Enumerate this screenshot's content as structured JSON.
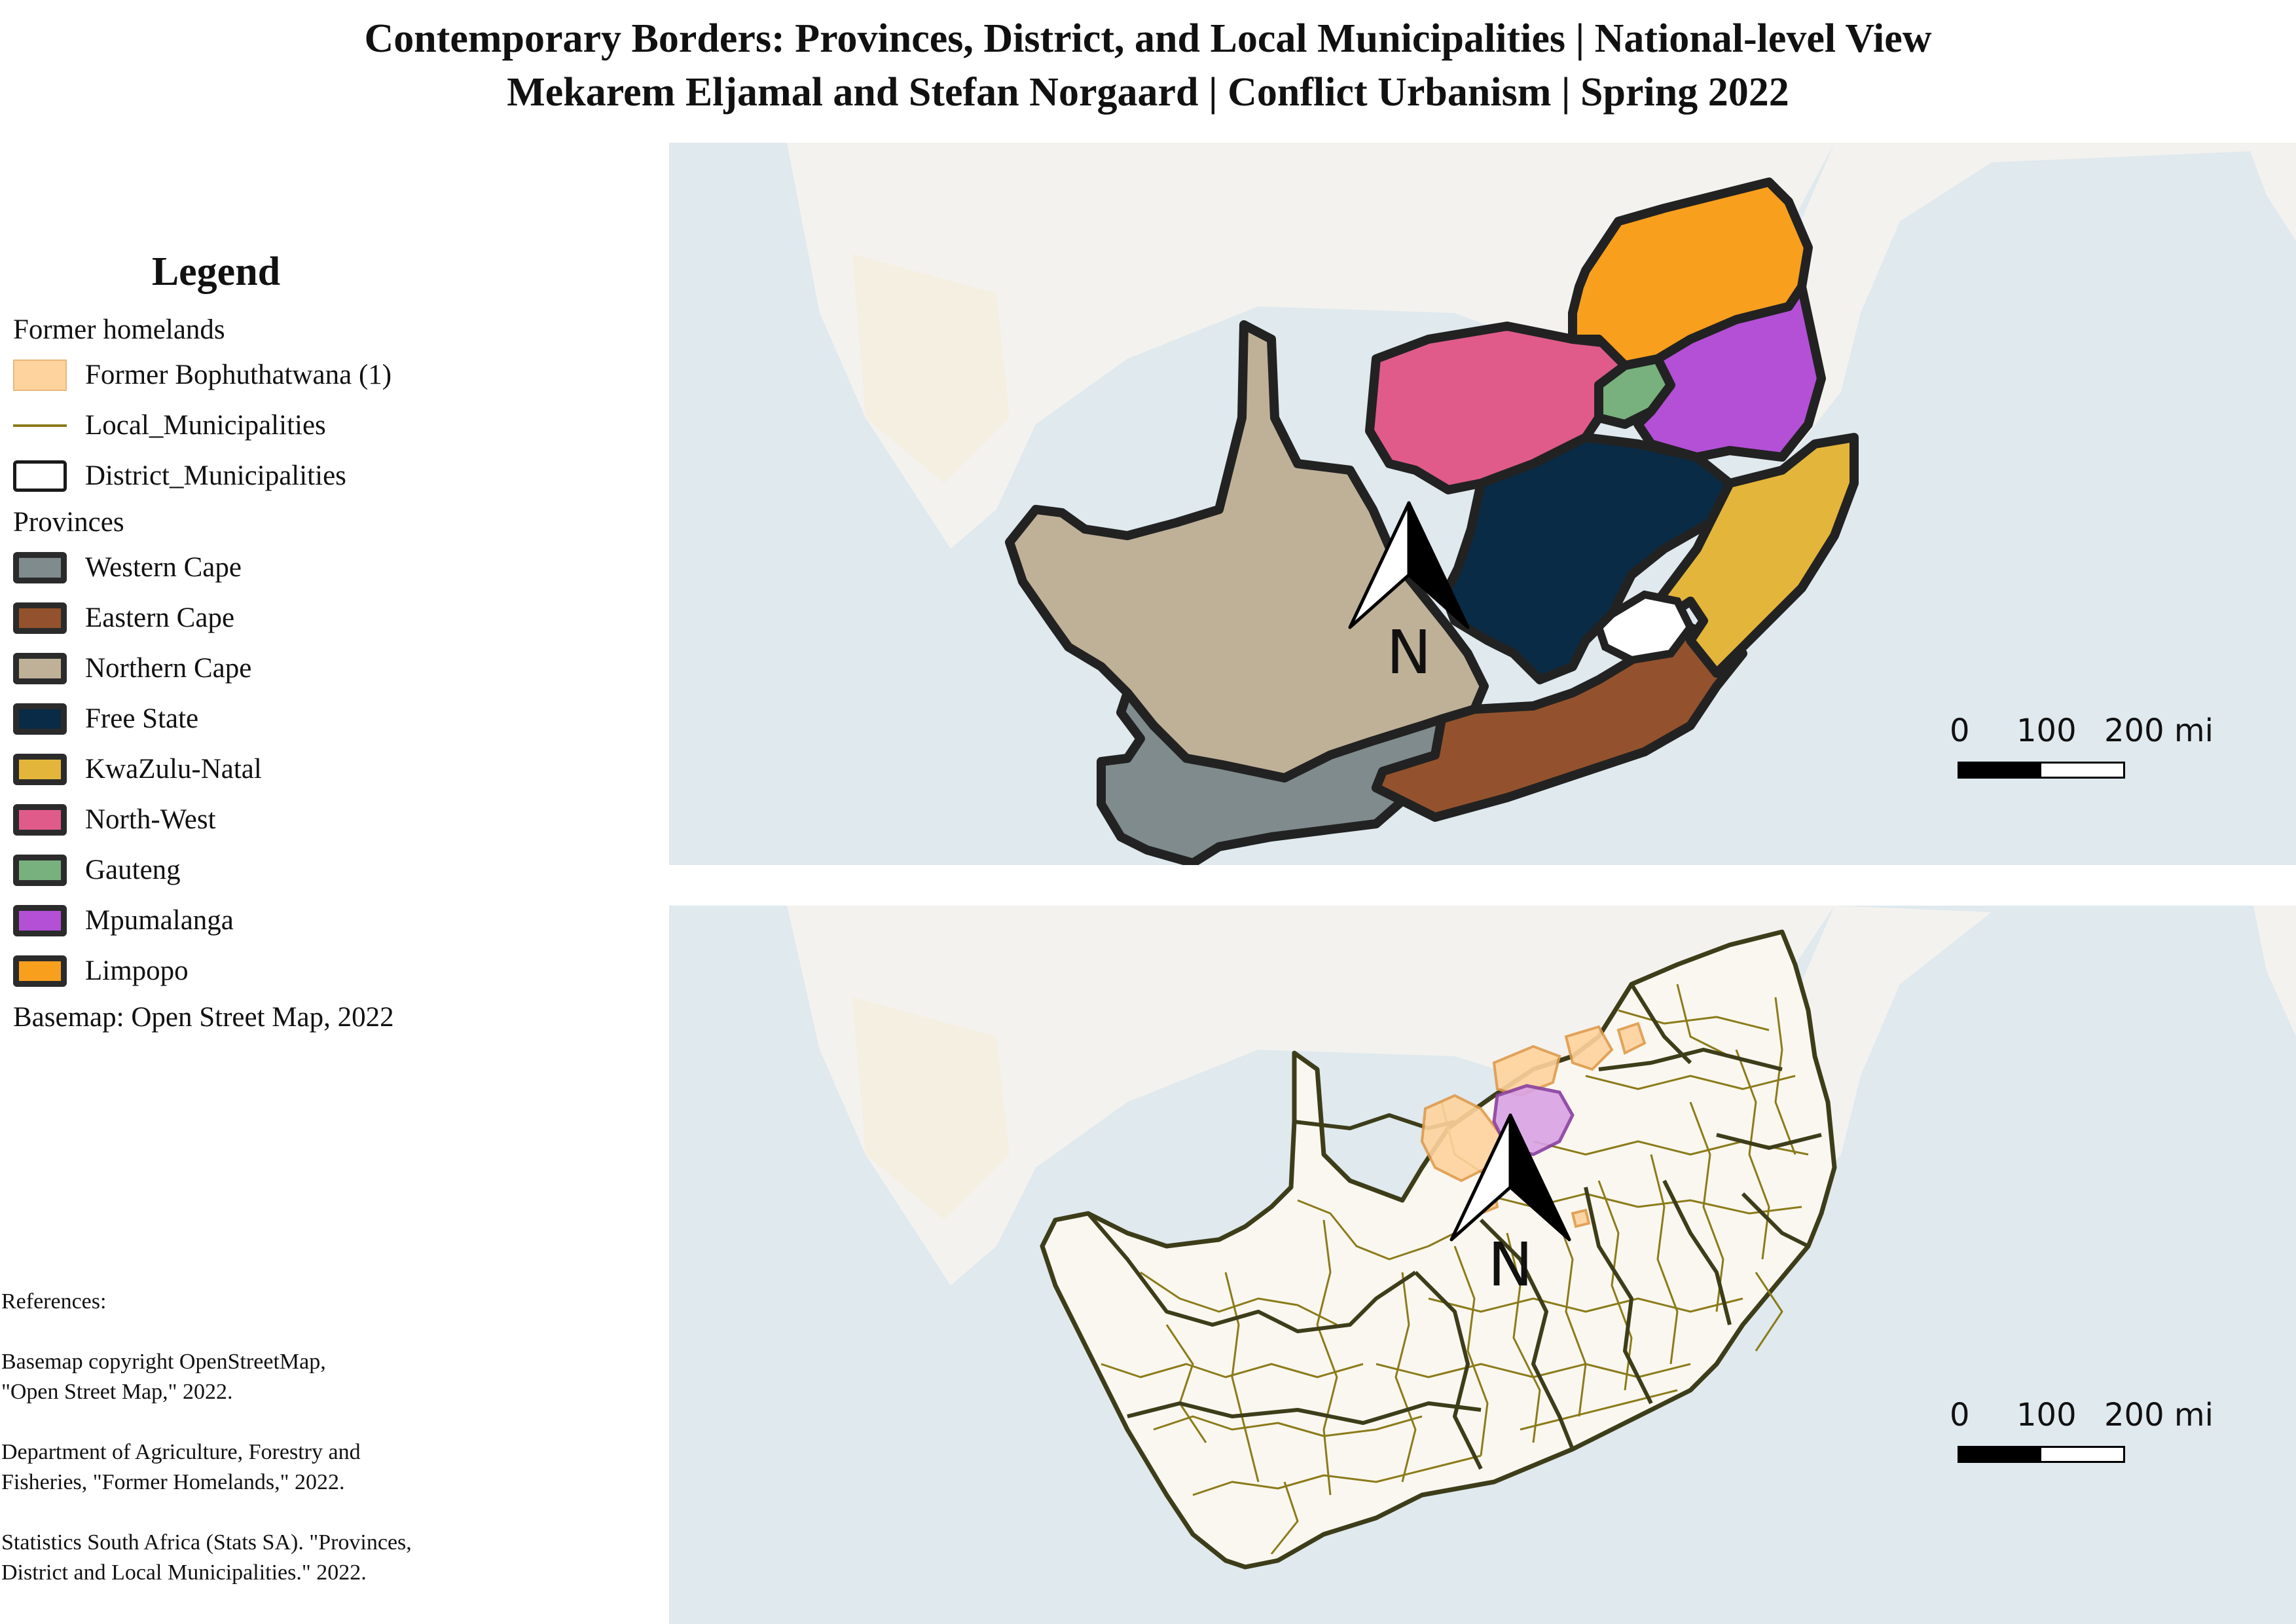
{
  "title": {
    "line1": "Contemporary Borders: Provinces, District, and Local Municipalities  |  National-level View",
    "line2": "Mekarem Eljamal and Stefan Norgaard  |  Conflict Urbanism  |  Spring 2022"
  },
  "legend": {
    "title": "Legend",
    "group_homelands": "Former homelands",
    "homeland_item": "Former Bophuthatwana (1)",
    "local_item": "Local_Municipalities",
    "district_item": "District_Municipalities",
    "group_provinces": "Provinces",
    "provinces": [
      {
        "label": "Western Cape",
        "color": "#7f8b8c"
      },
      {
        "label": "Eastern Cape",
        "color": "#93522d"
      },
      {
        "label": "Northern Cape",
        "color": "#bfb198"
      },
      {
        "label": "Free State",
        "color": "#0a2b45"
      },
      {
        "label": "KwaZulu-Natal",
        "color": "#e3b53b"
      },
      {
        "label": "North-West",
        "color": "#e05b8a"
      },
      {
        "label": "Gauteng",
        "color": "#78b07e"
      },
      {
        "label": "Mpumalanga",
        "color": "#b350d6"
      },
      {
        "label": "Limpopo",
        "color": "#f89f1e"
      }
    ],
    "basemap_note": "Basemap: Open Street Map, 2022"
  },
  "references": {
    "heading": "References:",
    "ref1_line1": "Basemap copyright OpenStreetMap,",
    "ref1_line2": "\"Open Street Map,\" 2022.",
    "ref2_line1": "Department of Agriculture, Forestry and",
    "ref2_line2": "Fisheries, \"Former Homelands,\" 2022.",
    "ref3_line1": "Statistics South Africa (Stats SA). \"Provinces,",
    "ref3_line2": "District and Local Municipalities.\" 2022."
  },
  "map_top": {
    "north_label": "N",
    "scale": {
      "tick0": "0",
      "tick1": "100",
      "tick2": "200 mi"
    }
  },
  "map_bottom": {
    "north_label": "N",
    "scale": {
      "tick0": "0",
      "tick1": "100",
      "tick2": "200 mi"
    }
  },
  "colors": {
    "ocean": "#dfe9ee",
    "land_basemap": "#f3f2ee",
    "province_border": "#222222",
    "local_line": "#8b7b1a",
    "district_line": "#3d3d1a",
    "homeland_fill": "#ffd39d",
    "gauteng_overlay": "#d9a3e6",
    "lesotho_fill": "#ffffff"
  }
}
